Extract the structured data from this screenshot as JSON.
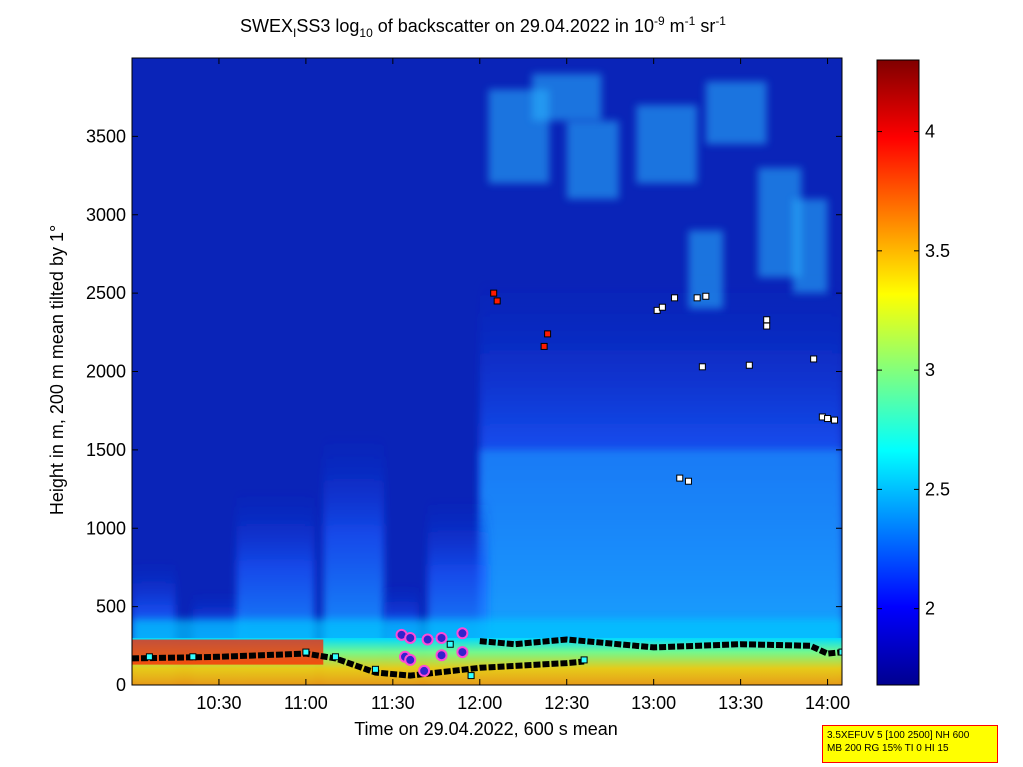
{
  "title": {
    "prefix": "SWEX",
    "sub_i": "I",
    "mid": "SS3 log",
    "sub_10": "10",
    "rest": " of backscatter on 29.04.2022 in 10",
    "sup1": "-9",
    "unit1": " m",
    "sup2": "-1",
    "unit2": " sr",
    "sup3": "-1"
  },
  "info_box": {
    "line1": "3.5XEFUV 5 [100 2500] NH 600",
    "line2": "MB 200 RG 15% TI 0 HI 15"
  },
  "chart_data": {
    "type": "heatmap",
    "xlabel": "Time on 29.04.2022, 600 s mean",
    "ylabel": "Height in m, 200 m mean tilted by 1°",
    "x_ticks": [
      "10:30",
      "11:00",
      "11:30",
      "12:00",
      "12:30",
      "13:00",
      "13:30",
      "14:00"
    ],
    "x_tick_hours": [
      10.5,
      11.0,
      11.5,
      12.0,
      12.5,
      13.0,
      13.5,
      14.0
    ],
    "xlim_hours": [
      10.0,
      14.083
    ],
    "y_ticks": [
      0,
      500,
      1000,
      1500,
      2000,
      2500,
      3000,
      3500
    ],
    "ylim": [
      0,
      4000
    ],
    "colorbar": {
      "ticks": [
        2,
        2.5,
        3,
        3.5,
        4
      ],
      "tick_labels": [
        "2",
        "2.5",
        "3",
        "3.5",
        "4"
      ],
      "range": [
        1.68,
        4.3
      ],
      "colormap": "jet"
    },
    "surface_layer_top": [
      {
        "time_h": 10.0,
        "height": 170
      },
      {
        "time_h": 10.5,
        "height": 180
      },
      {
        "time_h": 11.0,
        "height": 200
      },
      {
        "time_h": 11.17,
        "height": 170
      },
      {
        "time_h": 11.4,
        "height": 80
      },
      {
        "time_h": 11.6,
        "height": 60
      },
      {
        "time_h": 12.0,
        "height": 110
      },
      {
        "time_h": 12.5,
        "height": 140
      },
      {
        "time_h": 12.6,
        "height": 150
      }
    ],
    "upper_layer_top": [
      {
        "time_h": 12.0,
        "height": 280
      },
      {
        "time_h": 12.2,
        "height": 260
      },
      {
        "time_h": 12.5,
        "height": 290
      },
      {
        "time_h": 13.0,
        "height": 240
      },
      {
        "time_h": 13.5,
        "height": 260
      },
      {
        "time_h": 13.9,
        "height": 250
      },
      {
        "time_h": 14.0,
        "height": 200
      },
      {
        "time_h": 14.083,
        "height": 210
      }
    ],
    "cloud_markers_white": [
      {
        "time_h": 13.02,
        "height": 2390
      },
      {
        "time_h": 13.05,
        "height": 2410
      },
      {
        "time_h": 13.12,
        "height": 2470
      },
      {
        "time_h": 13.25,
        "height": 2470
      },
      {
        "time_h": 13.3,
        "height": 2480
      },
      {
        "time_h": 13.15,
        "height": 1320
      },
      {
        "time_h": 13.2,
        "height": 1300
      },
      {
        "time_h": 13.28,
        "height": 2030
      },
      {
        "time_h": 13.55,
        "height": 2040
      },
      {
        "time_h": 13.65,
        "height": 2330
      },
      {
        "time_h": 13.65,
        "height": 2290
      },
      {
        "time_h": 13.92,
        "height": 2080
      },
      {
        "time_h": 13.97,
        "height": 1710
      },
      {
        "time_h": 14.0,
        "height": 1700
      },
      {
        "time_h": 14.04,
        "height": 1690
      }
    ],
    "cloud_markers_red": [
      {
        "time_h": 12.08,
        "height": 2500
      },
      {
        "time_h": 12.1,
        "height": 2450
      },
      {
        "time_h": 12.39,
        "height": 2240
      },
      {
        "time_h": 12.37,
        "height": 2160
      }
    ],
    "purple_markers": [
      {
        "time_h": 11.55,
        "height": 320
      },
      {
        "time_h": 11.6,
        "height": 300
      },
      {
        "time_h": 11.7,
        "height": 290
      },
      {
        "time_h": 11.78,
        "height": 300
      },
      {
        "time_h": 11.9,
        "height": 330
      },
      {
        "time_h": 11.57,
        "height": 180
      },
      {
        "time_h": 11.6,
        "height": 160
      },
      {
        "time_h": 11.78,
        "height": 190
      },
      {
        "time_h": 11.9,
        "height": 210
      },
      {
        "time_h": 11.68,
        "height": 90
      }
    ],
    "cyan_markers": [
      {
        "time_h": 10.1,
        "height": 180
      },
      {
        "time_h": 10.35,
        "height": 180
      },
      {
        "time_h": 11.0,
        "height": 210
      },
      {
        "time_h": 11.17,
        "height": 180
      },
      {
        "time_h": 11.4,
        "height": 100
      },
      {
        "time_h": 11.83,
        "height": 260
      },
      {
        "time_h": 11.95,
        "height": 60
      },
      {
        "time_h": 12.6,
        "height": 160
      },
      {
        "time_h": 14.083,
        "height": 210
      }
    ]
  }
}
